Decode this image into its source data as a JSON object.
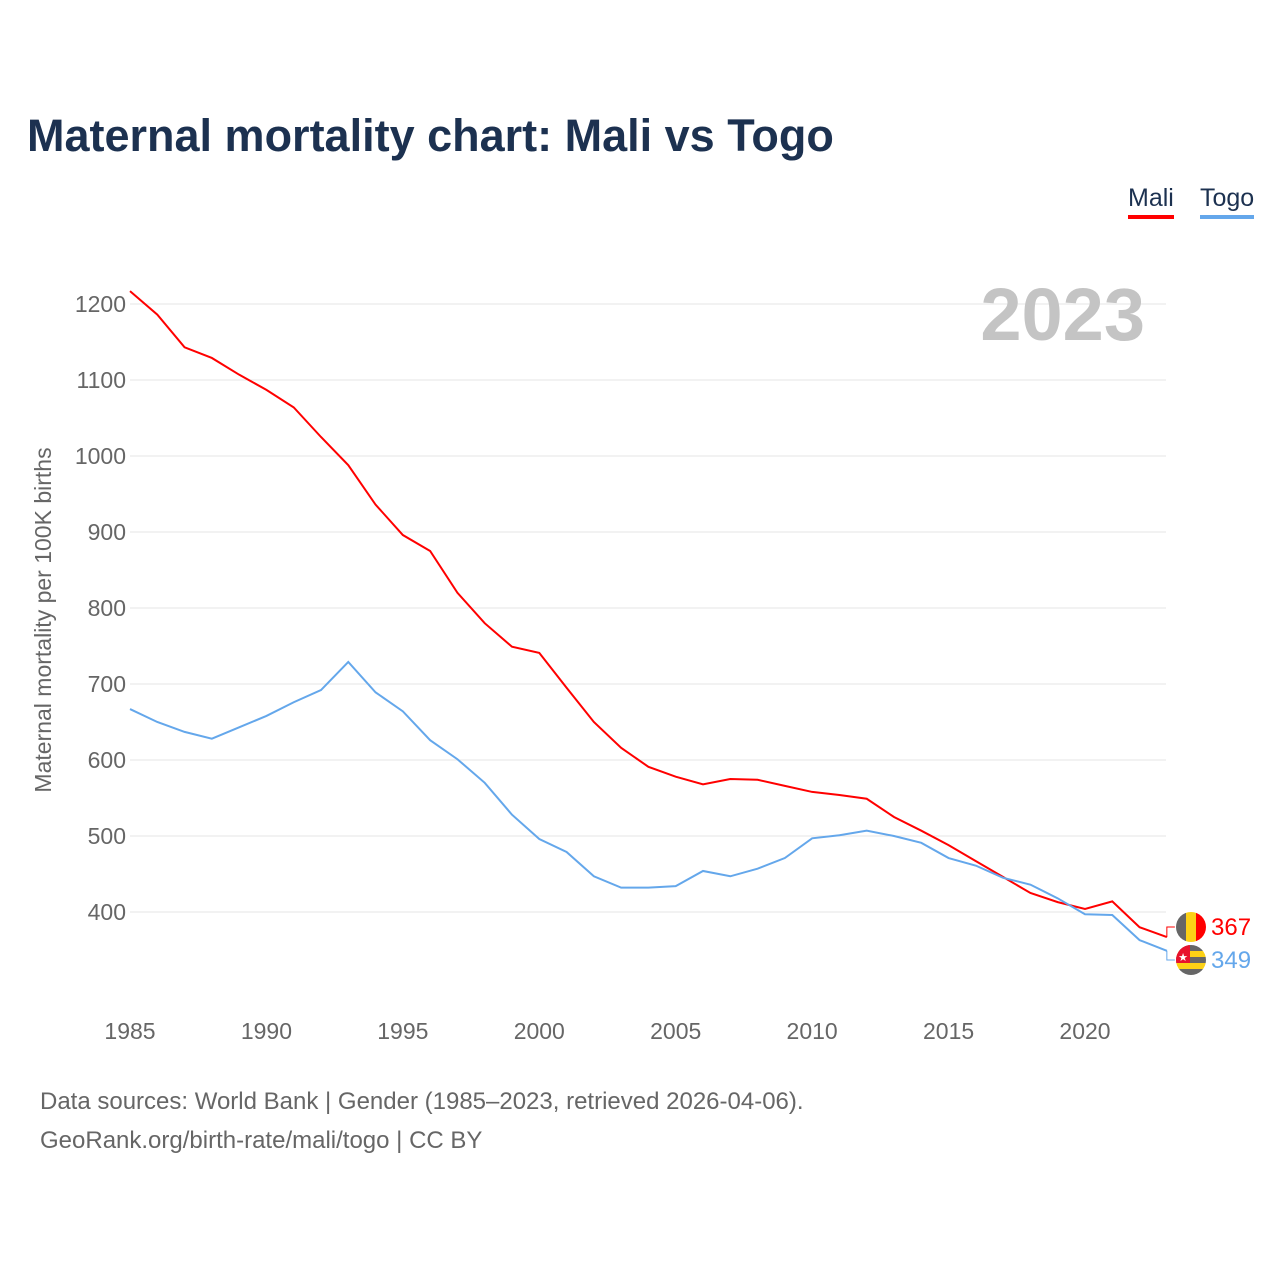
{
  "chart_data": {
    "type": "line",
    "title": "Maternal mortality chart: Mali vs Togo",
    "ylabel": "Maternal mortality per 100K births",
    "xlabel": "",
    "year_watermark": "2023",
    "ylim": [
      300,
      1250
    ],
    "xlim": [
      1985,
      2023
    ],
    "yticks": [
      400,
      500,
      600,
      700,
      800,
      900,
      1000,
      1100,
      1200
    ],
    "xticks": [
      1985,
      1990,
      1995,
      2000,
      2005,
      2010,
      2015,
      2020
    ],
    "grid": true,
    "legend_position": "top-right",
    "x": [
      1985,
      1986,
      1987,
      1988,
      1989,
      1990,
      1991,
      1992,
      1993,
      1994,
      1995,
      1996,
      1997,
      1998,
      1999,
      2000,
      2001,
      2002,
      2003,
      2004,
      2005,
      2006,
      2007,
      2008,
      2009,
      2010,
      2011,
      2012,
      2013,
      2014,
      2015,
      2016,
      2017,
      2018,
      2019,
      2020,
      2021,
      2022,
      2023
    ],
    "series": [
      {
        "name": "Mali",
        "color": "#ff0000",
        "end_label": "367",
        "values": [
          1217,
          1186,
          1143,
          1129,
          1107,
          1087,
          1064,
          1025,
          988,
          936,
          896,
          875,
          820,
          780,
          749,
          741,
          695,
          650,
          616,
          591,
          578,
          568,
          575,
          574,
          566,
          558,
          554,
          549,
          525,
          507,
          488,
          467,
          446,
          425,
          413,
          404,
          414,
          380,
          367
        ]
      },
      {
        "name": "Togo",
        "color": "#64a7eb",
        "end_label": "349",
        "values": [
          667,
          650,
          637,
          628,
          643,
          658,
          676,
          692,
          729,
          689,
          664,
          626,
          601,
          570,
          528,
          496,
          479,
          447,
          432,
          432,
          434,
          454,
          447,
          457,
          471,
          497,
          501,
          507,
          500,
          491,
          471,
          461,
          445,
          436,
          418,
          397,
          396,
          363,
          349
        ]
      }
    ]
  },
  "footer": {
    "source_line": "Data sources: World Bank | Gender (1985–2023, retrieved 2026-04-06).",
    "credit_line": "GeoRank.org/birth-rate/mali/togo | CC BY"
  }
}
